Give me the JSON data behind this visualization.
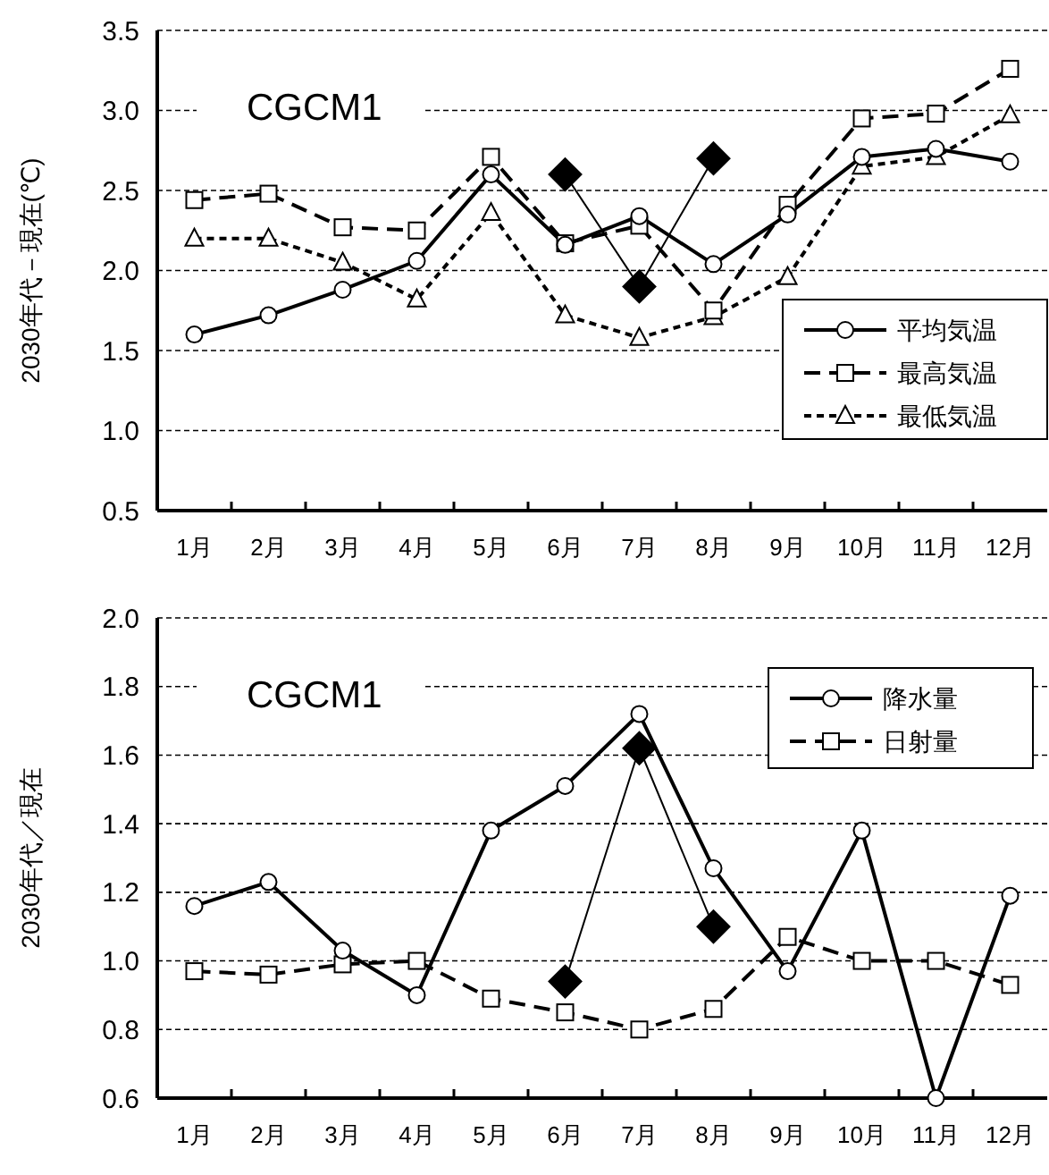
{
  "chart_data": [
    {
      "type": "line",
      "ylabel": "2030年代－現在(℃)",
      "annotations": [
        "CGCM1"
      ],
      "categories": [
        "1月",
        "2月",
        "3月",
        "4月",
        "5月",
        "6月",
        "7月",
        "8月",
        "9月",
        "10月",
        "11月",
        "12月"
      ],
      "ylim": [
        0.5,
        3.5
      ],
      "yticks": [
        {
          "value": 0.5,
          "label": "0.5"
        },
        {
          "value": 1,
          "label": "1.0"
        },
        {
          "value": 1.5,
          "label": "1.5"
        },
        {
          "value": 2,
          "label": "2.0"
        },
        {
          "value": 2.5,
          "label": "2.5"
        },
        {
          "value": 3,
          "label": "3.0"
        },
        {
          "value": 3.5,
          "label": "3.5"
        }
      ],
      "grid": "y",
      "legend": "bottom right",
      "series": [
        {
          "name": "平均気温",
          "color": "#000000",
          "marker": "circle",
          "line_style": "solid",
          "values": [
            1.6,
            1.72,
            1.88,
            2.06,
            2.6,
            2.16,
            2.34,
            2.04,
            2.35,
            2.71,
            2.76,
            2.68
          ]
        },
        {
          "name": "最高気温",
          "color": "#000000",
          "marker": "square",
          "line_style": "dashed",
          "values": [
            2.44,
            2.48,
            2.27,
            2.25,
            2.71,
            2.17,
            2.28,
            1.75,
            2.41,
            2.95,
            2.98,
            3.26
          ]
        },
        {
          "name": "最低気温",
          "color": "#000000",
          "marker": "triangle",
          "line_style": "dotted",
          "values": [
            2.2,
            2.2,
            2.05,
            1.82,
            2.36,
            1.72,
            1.58,
            1.71,
            1.96,
            2.65,
            2.71,
            2.97
          ]
        },
        {
          "color": "#000000",
          "marker": "diamond",
          "line_style": "solid",
          "values": [
            null,
            null,
            null,
            null,
            null,
            2.6,
            1.9,
            2.7,
            null,
            null,
            null,
            null
          ]
        }
      ]
    },
    {
      "type": "line",
      "ylabel": "2030年代／現在",
      "annotations": [
        "CGCM1"
      ],
      "categories": [
        "1月",
        "2月",
        "3月",
        "4月",
        "5月",
        "6月",
        "7月",
        "8月",
        "9月",
        "10月",
        "11月",
        "12月"
      ],
      "ylim": [
        0.6,
        2.0
      ],
      "yticks": [
        {
          "value": 0.6,
          "label": "0.6"
        },
        {
          "value": 0.8,
          "label": "0.8"
        },
        {
          "value": 1,
          "label": "1.0"
        },
        {
          "value": 1.2,
          "label": "1.2"
        },
        {
          "value": 1.4,
          "label": "1.4"
        },
        {
          "value": 1.6,
          "label": "1.6"
        },
        {
          "value": 1.8,
          "label": "1.8"
        },
        {
          "value": 2,
          "label": "2.0"
        }
      ],
      "grid": "y",
      "legend": "top right",
      "series": [
        {
          "name": "降水量",
          "color": "#000000",
          "marker": "circle",
          "line_style": "solid",
          "values": [
            1.16,
            1.23,
            1.03,
            0.9,
            1.38,
            1.51,
            1.72,
            1.27,
            0.97,
            1.38,
            0.6,
            1.19
          ]
        },
        {
          "name": "日射量",
          "color": "#000000",
          "marker": "square",
          "line_style": "dashed",
          "values": [
            0.97,
            0.96,
            0.99,
            1.0,
            0.89,
            0.85,
            0.8,
            0.86,
            1.07,
            1.0,
            1.0,
            0.93
          ]
        },
        {
          "color": "#000000",
          "marker": "diamond",
          "line_style": "solid",
          "values": [
            null,
            null,
            null,
            null,
            null,
            0.94,
            1.62,
            1.1,
            null,
            null,
            null,
            null
          ]
        }
      ]
    }
  ]
}
